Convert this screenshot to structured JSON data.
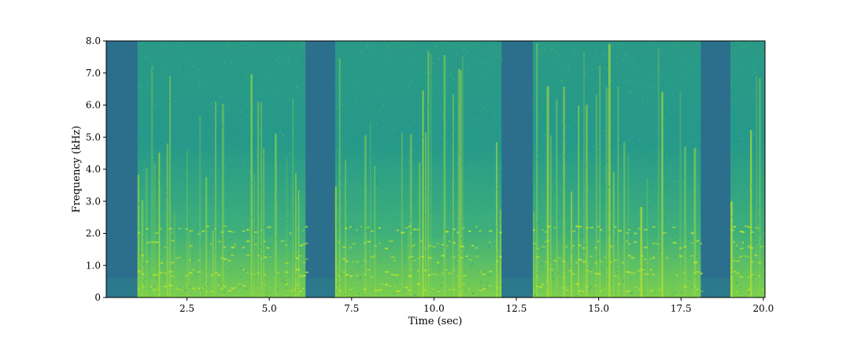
{
  "chart_data": {
    "type": "heatmap",
    "title": "",
    "xlabel": "Time (sec)",
    "ylabel": "Frequency (kHz)",
    "xlim": [
      0.05,
      20.05
    ],
    "ylim": [
      0,
      8
    ],
    "x_ticks": [
      2.5,
      5.0,
      7.5,
      10.0,
      12.5,
      15.0,
      17.5,
      20.0
    ],
    "x_tick_labels": [
      "2.5",
      "5.0",
      "7.5",
      "10.0",
      "12.5",
      "15.0",
      "17.5",
      "20.0"
    ],
    "y_ticks": [
      0,
      1,
      2,
      3,
      4,
      5,
      6,
      7,
      8
    ],
    "y_tick_labels": [
      "0",
      "1.0",
      "2.0",
      "3.0",
      "4.0",
      "5.0",
      "6.0",
      "7.0",
      "8.0"
    ],
    "colormap": "viridis",
    "grid": false,
    "silent_intervals_sec": [
      [
        0.05,
        1.0
      ],
      [
        6.1,
        7.0
      ],
      [
        12.05,
        13.0
      ],
      [
        18.1,
        19.0
      ]
    ],
    "speech_intervals_sec": [
      [
        1.0,
        6.1
      ],
      [
        7.0,
        12.05
      ],
      [
        13.0,
        18.1
      ],
      [
        19.0,
        20.05
      ]
    ],
    "colors": {
      "silence": "#2b6f8c",
      "speech_base": "#26998a",
      "speech_bright": "#bde62a"
    }
  }
}
